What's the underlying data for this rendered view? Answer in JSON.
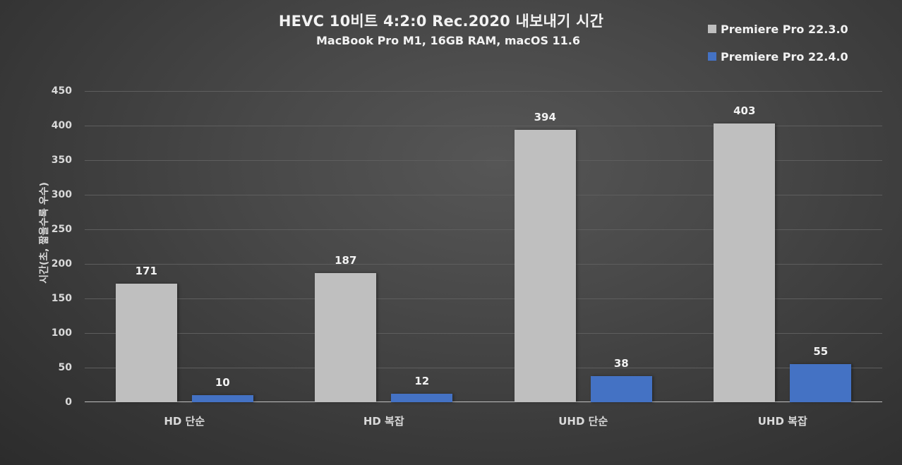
{
  "chart_data": {
    "type": "bar",
    "title": "HEVC 10비트 4:2:0 Rec.2020 내보내기 시간",
    "subtitle": "MacBook Pro M1, 16GB RAM, macOS 11.6",
    "xlabel": "",
    "ylabel": "시간(초, 짧을수록 우수)",
    "ylim": [
      0,
      450
    ],
    "yticks": [
      0,
      50,
      100,
      150,
      200,
      250,
      300,
      350,
      400,
      450
    ],
    "grid": true,
    "legend_position": "top-right",
    "categories": [
      "HD 단순",
      "HD 복잡",
      "UHD 단순",
      "UHD 복잡"
    ],
    "series": [
      {
        "name": "Premiere Pro 22.3.0",
        "color": "#bfbfbf",
        "values": [
          171,
          187,
          394,
          403
        ]
      },
      {
        "name": "Premiere Pro 22.4.0",
        "color": "#4472c4",
        "values": [
          10,
          12,
          38,
          55
        ]
      }
    ]
  }
}
